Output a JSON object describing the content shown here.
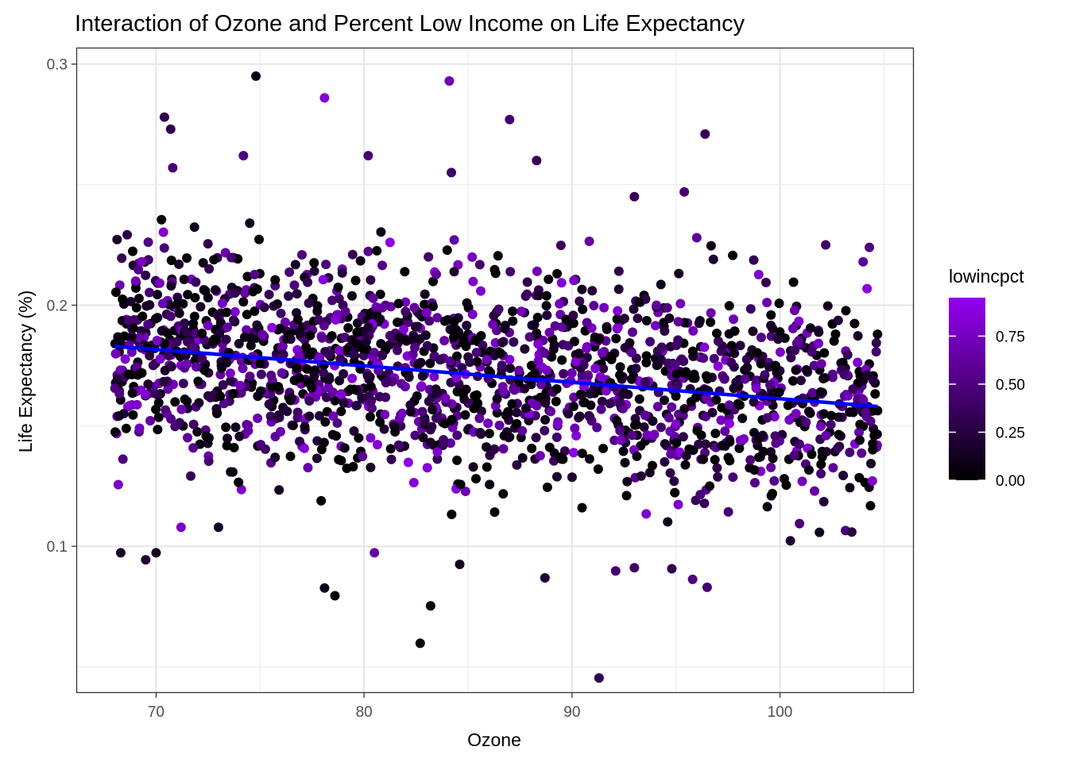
{
  "chart_data": {
    "type": "scatter",
    "title": "Interaction of Ozone and Percent Low Income on Life Expectancy",
    "xlabel": "Ozone",
    "ylabel": "Life Expectancy (%)",
    "xlim": [
      66.2,
      106.4
    ],
    "ylim": [
      0.0395,
      0.3065
    ],
    "x_ticks": [
      70,
      80,
      90,
      100
    ],
    "x_tick_labels": [
      "70",
      "80",
      "90",
      "100"
    ],
    "x_minor_ticks": [
      75,
      85,
      95,
      105
    ],
    "y_ticks": [
      0.1,
      0.2,
      0.3
    ],
    "y_tick_labels": [
      "0.1",
      "0.2",
      "0.3"
    ],
    "y_minor_ticks": [
      0.05,
      0.15,
      0.25
    ],
    "grid": true,
    "legend": {
      "title": "lowincpct",
      "position": "right",
      "ticks": [
        0.0,
        0.25,
        0.5,
        0.75
      ],
      "tick_labels": [
        "0.00",
        "0.25",
        "0.50",
        "0.75"
      ],
      "range": [
        0,
        0.95
      ],
      "low_color": "#000000",
      "high_color": "#9400F0"
    },
    "trend_line": {
      "color": "#0000FF",
      "x": [
        68,
        104.7
      ],
      "y": [
        0.183,
        0.158
      ]
    },
    "point_cloud": {
      "count": 1800,
      "x_range": [
        68,
        104.7
      ],
      "y_center": [
        0.183,
        0.158
      ],
      "y_spread": 0.034
    },
    "points": [
      {
        "x": 74.8,
        "y": 0.295,
        "c": 0.1
      },
      {
        "x": 84.1,
        "y": 0.293,
        "c": 0.7
      },
      {
        "x": 78.1,
        "y": 0.286,
        "c": 0.85
      },
      {
        "x": 70.4,
        "y": 0.278,
        "c": 0.3
      },
      {
        "x": 87.0,
        "y": 0.277,
        "c": 0.45
      },
      {
        "x": 70.7,
        "y": 0.273,
        "c": 0.3
      },
      {
        "x": 96.4,
        "y": 0.271,
        "c": 0.35
      },
      {
        "x": 74.2,
        "y": 0.262,
        "c": 0.5
      },
      {
        "x": 80.2,
        "y": 0.262,
        "c": 0.45
      },
      {
        "x": 88.3,
        "y": 0.26,
        "c": 0.35
      },
      {
        "x": 70.8,
        "y": 0.257,
        "c": 0.45
      },
      {
        "x": 84.2,
        "y": 0.255,
        "c": 0.4
      },
      {
        "x": 95.4,
        "y": 0.247,
        "c": 0.45
      },
      {
        "x": 93.0,
        "y": 0.245,
        "c": 0.35
      },
      {
        "x": 96.0,
        "y": 0.228,
        "c": 0.6
      },
      {
        "x": 102.2,
        "y": 0.225,
        "c": 0.4
      },
      {
        "x": 104.3,
        "y": 0.224,
        "c": 0.5
      },
      {
        "x": 104.0,
        "y": 0.218,
        "c": 0.6
      },
      {
        "x": 96.8,
        "y": 0.219,
        "c": 0.2
      },
      {
        "x": 69.3,
        "y": 0.218,
        "c": 0.8
      },
      {
        "x": 83.2,
        "y": 0.0753,
        "c": 0.1
      },
      {
        "x": 82.7,
        "y": 0.0598,
        "c": 0.05
      },
      {
        "x": 91.3,
        "y": 0.0454,
        "c": 0.3
      },
      {
        "x": 78.1,
        "y": 0.0827,
        "c": 0.1
      },
      {
        "x": 78.6,
        "y": 0.0795,
        "c": 0.05
      },
      {
        "x": 88.7,
        "y": 0.0869,
        "c": 0.2
      },
      {
        "x": 96.5,
        "y": 0.083,
        "c": 0.45
      },
      {
        "x": 95.8,
        "y": 0.0863,
        "c": 0.5
      },
      {
        "x": 68.3,
        "y": 0.0973,
        "c": 0.15
      },
      {
        "x": 70.0,
        "y": 0.0973,
        "c": 0.15
      },
      {
        "x": 69.5,
        "y": 0.0944,
        "c": 0.2
      },
      {
        "x": 84.6,
        "y": 0.0925,
        "c": 0.1
      },
      {
        "x": 80.5,
        "y": 0.0973,
        "c": 0.65
      },
      {
        "x": 93.0,
        "y": 0.0911,
        "c": 0.4
      },
      {
        "x": 101.9,
        "y": 0.1058,
        "c": 0.1
      },
      {
        "x": 100.5,
        "y": 0.1023,
        "c": 0.2
      },
      {
        "x": 92.1,
        "y": 0.0898,
        "c": 0.45
      },
      {
        "x": 94.8,
        "y": 0.0907,
        "c": 0.3
      },
      {
        "x": 73.0,
        "y": 0.1079,
        "c": 0.15
      },
      {
        "x": 71.2,
        "y": 0.1079,
        "c": 0.8
      }
    ]
  }
}
